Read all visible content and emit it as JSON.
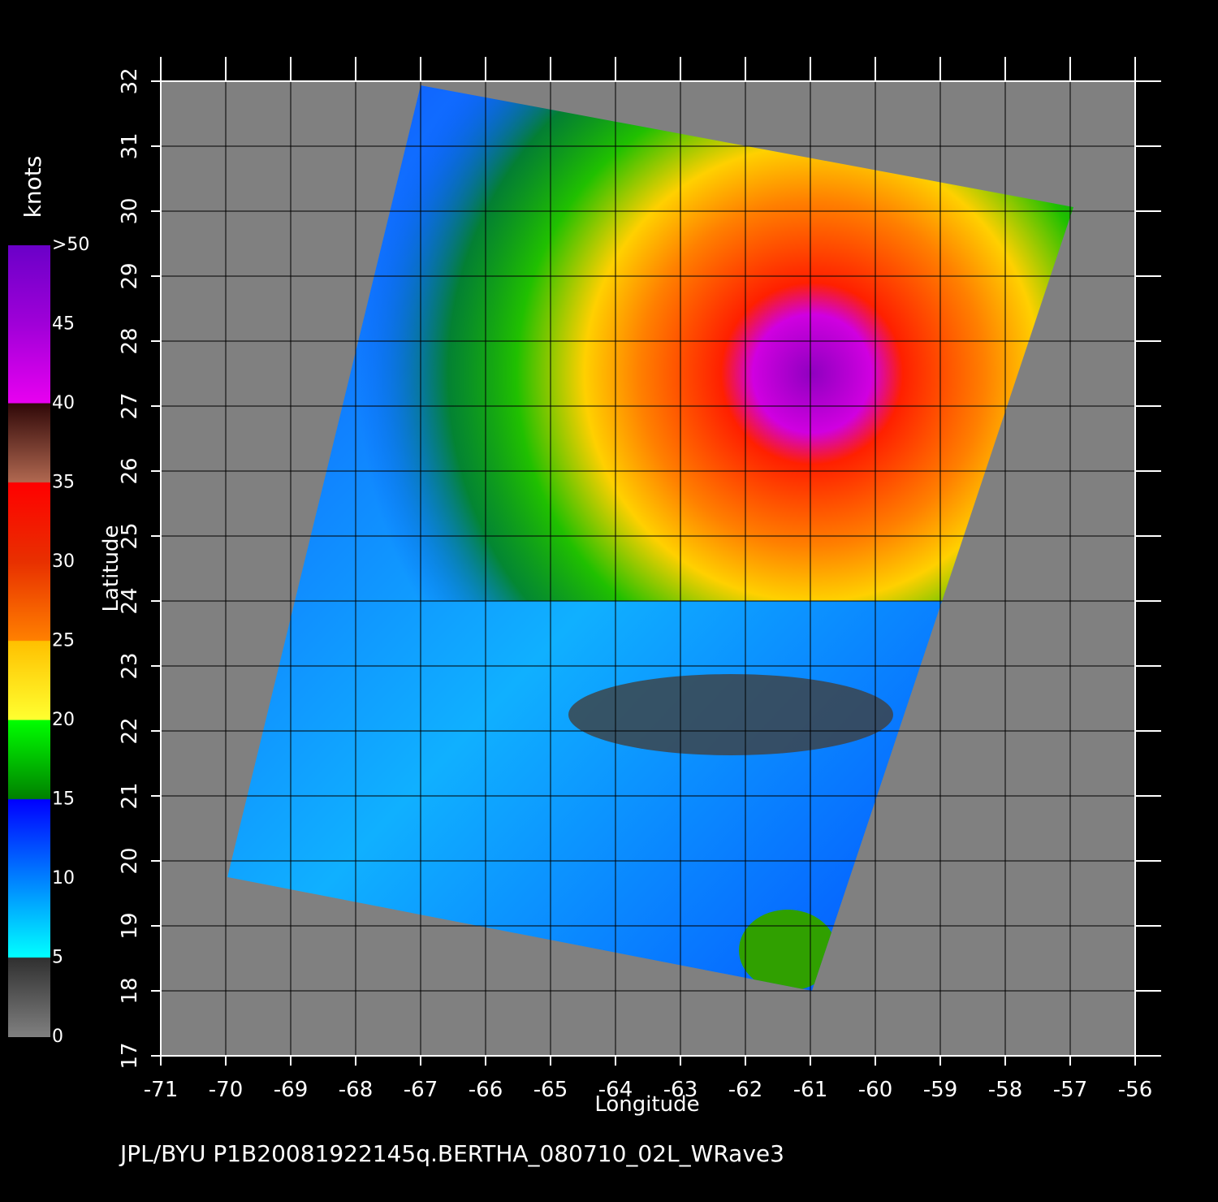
{
  "map": {
    "xaxis": {
      "label": "Longitude",
      "ticks": [
        -71,
        -70,
        -69,
        -68,
        -67,
        -66,
        -65,
        -64,
        -63,
        -62,
        -61,
        -60,
        -59,
        -58,
        -57,
        -56
      ]
    },
    "yaxis": {
      "label": "Latitude",
      "ticks": [
        17,
        18,
        19,
        20,
        21,
        22,
        23,
        24,
        25,
        26,
        27,
        28,
        29,
        30,
        31,
        32
      ]
    },
    "colorbar": {
      "title": "knots",
      "ticks": [
        0,
        5,
        10,
        15,
        20,
        25,
        30,
        35,
        40,
        45,
        {
          "value": 50,
          "label": ">50"
        }
      ]
    },
    "footer": "JPL/BYU  P1B20081922145q.BERTHA_080710_02L_WRave3"
  }
}
